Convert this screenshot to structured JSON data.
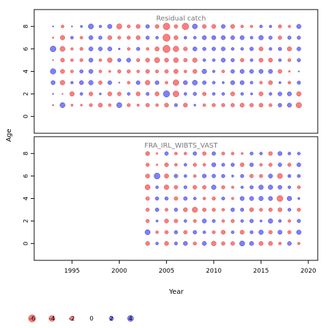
{
  "chart_data": {
    "type": "scatter",
    "subtype": "bubble",
    "xlabel": "Year",
    "ylabel": "Age",
    "xlim": [
      1991,
      2021
    ],
    "x_ticks": [
      1995,
      2000,
      2005,
      2010,
      2015,
      2020
    ],
    "y_ticks": [
      0,
      2,
      4,
      6,
      8
    ],
    "grid": false,
    "colors": {
      "positive": "#6a6af5",
      "negative": "#f56a6a",
      "panel_title": "#777777"
    },
    "panels": [
      {
        "title": "Residual catch",
        "ylim": [
          -1.5,
          9.5
        ],
        "years": [
          1993,
          1994,
          1995,
          1996,
          1997,
          1998,
          1999,
          2000,
          2001,
          2002,
          2003,
          2004,
          2005,
          2006,
          2007,
          2008,
          2009,
          2010,
          2011,
          2012,
          2013,
          2014,
          2015,
          2016,
          2017,
          2018,
          2019
        ],
        "ages": [
          1,
          2,
          3,
          4,
          5,
          6,
          7,
          8
        ],
        "residuals_by_age": {
          "1": [
            -0.3,
            3.0,
            -0.6,
            -0.5,
            -1.2,
            -2.0,
            -1.0,
            3.0,
            -1.3,
            -0.7,
            -1.6,
            -1.0,
            -2.0,
            1.2,
            -2.0,
            0.5,
            -1.0,
            -1.4,
            -1.4,
            -1.6,
            -2.0,
            -1.6,
            -1.8,
            -1.2,
            1.6,
            2.0,
            -3.5
          ],
          "2": [
            0.2,
            -0.2,
            -2.4,
            1.0,
            -1.8,
            0.5,
            -2.0,
            -1.7,
            1.0,
            -2.0,
            1.2,
            -2.0,
            4.6,
            -4.0,
            1.0,
            1.4,
            -1.6,
            1.0,
            1.0,
            -2.0,
            1.0,
            0.6,
            -2.0,
            1.0,
            1.8,
            2.0,
            -2.4
          ],
          "3": [
            2.0,
            -2.6,
            0.8,
            2.0,
            2.4,
            -1.6,
            1.8,
            0.2,
            -1.0,
            1.8,
            -2.6,
            1.8,
            -1.0,
            -3.8,
            2.0,
            2.8,
            1.6,
            1.0,
            0.6,
            2.0,
            2.0,
            1.0,
            -1.0,
            -2.0,
            0.6,
            -1.0,
            1.4
          ],
          "4": [
            3.4,
            -2.0,
            -1.0,
            1.4,
            2.0,
            -1.0,
            -0.6,
            -1.4,
            -1.4,
            -1.0,
            -1.8,
            -1.2,
            -1.6,
            -2.2,
            -1.0,
            -2.0,
            2.4,
            0.8,
            -1.0,
            1.6,
            2.0,
            1.8,
            2.0,
            2.0,
            -1.8,
            -0.4,
            0.2
          ],
          "5": [
            -0.2,
            -1.8,
            -1.0,
            -1.2,
            2.0,
            -1.0,
            -2.6,
            1.4,
            2.0,
            -1.4,
            -2.0,
            -3.2,
            -2.0,
            -2.8,
            -1.6,
            -2.4,
            1.0,
            1.0,
            2.0,
            1.4,
            -1.6,
            1.0,
            -2.0,
            -2.0,
            1.0,
            -1.2,
            1.4
          ],
          "6": [
            3.8,
            -3.0,
            -0.8,
            -1.2,
            2.0,
            1.8,
            2.0,
            0.4,
            -1.0,
            1.4,
            -1.0,
            -2.2,
            -6.0,
            -3.6,
            -1.8,
            2.0,
            1.4,
            1.6,
            1.8,
            1.0,
            1.0,
            1.6,
            -2.0,
            1.0,
            1.4,
            -2.2,
            1.8
          ],
          "7": [
            -0.3,
            -2.4,
            1.0,
            -1.0,
            2.0,
            1.4,
            -2.0,
            -1.2,
            -1.4,
            -2.0,
            1.4,
            1.0,
            -6.0,
            -2.0,
            1.0,
            1.0,
            2.0,
            2.0,
            2.0,
            1.8,
            2.0,
            1.0,
            2.4,
            1.4,
            -1.6,
            1.4,
            1.4
          ],
          "8": [
            0.2,
            -1.0,
            0.2,
            0.6,
            3.0,
            0.8,
            2.2,
            -3.2,
            -1.2,
            -2.0,
            1.6,
            -1.8,
            -5.2,
            -1.6,
            -5.0,
            2.8,
            -1.8,
            -2.0,
            1.8,
            -2.0,
            -1.0,
            -0.8,
            1.0,
            0.8,
            -1.4,
            -0.8,
            2.2
          ]
        }
      },
      {
        "title": "FRA_IRL_WIBTS_VAST",
        "ylim": [
          -1.5,
          9.5
        ],
        "years": [
          2003,
          2004,
          2005,
          2006,
          2007,
          2008,
          2009,
          2010,
          2011,
          2012,
          2013,
          2014,
          2015,
          2016,
          2017,
          2018,
          2019
        ],
        "ages": [
          0,
          1,
          2,
          3,
          4,
          5,
          6,
          7,
          8
        ],
        "residuals_by_age": {
          "0": [
            -2.0,
            1.0,
            -2.0,
            1.2,
            2.0,
            -1.4,
            2.0,
            -2.6,
            -1.6,
            -1.8,
            3.0,
            2.0,
            -2.0,
            -2.0,
            -1.0,
            1.8,
            -0.8
          ],
          "1": [
            3.0,
            -1.0,
            -1.4,
            1.4,
            -1.6,
            1.6,
            1.0,
            -1.2,
            -2.0,
            1.0,
            -2.0,
            1.2,
            2.4,
            -1.6,
            2.0,
            -1.4,
            2.4
          ],
          "2": [
            -1.4,
            0.6,
            -2.0,
            -1.6,
            1.0,
            -1.2,
            2.0,
            1.2,
            -1.0,
            -1.4,
            1.0,
            1.6,
            0.6,
            2.4,
            1.0,
            -1.0,
            1.4
          ],
          "3": [
            -1.4,
            1.6,
            -1.2,
            1.4,
            -2.0,
            -3.2,
            -1.6,
            -1.4,
            -1.0,
            1.6,
            1.4,
            -2.0,
            -1.2,
            -1.6,
            -2.0,
            1.2,
            -1.4
          ],
          "4": [
            -1.6,
            1.4,
            1.4,
            -1.6,
            1.6,
            1.0,
            -1.0,
            -1.4,
            1.2,
            -0.8,
            2.0,
            2.0,
            2.2,
            2.0,
            -4.0,
            2.4,
            0.6
          ],
          "5": [
            -3.0,
            1.0,
            -2.6,
            -1.6,
            1.2,
            -1.8,
            -1.6,
            2.4,
            -1.4,
            -0.8,
            0.8,
            1.4,
            2.4,
            2.4,
            1.8,
            1.0,
            -1.2
          ],
          "6": [
            -2.0,
            4.0,
            -2.2,
            1.6,
            1.0,
            -1.0,
            1.8,
            1.6,
            1.4,
            0.6,
            1.4,
            -1.6,
            -1.4,
            2.0,
            -3.0,
            1.2,
            1.2
          ],
          "7": [
            -1.4,
            -0.4,
            -1.8,
            -1.0,
            1.0,
            -1.4,
            -1.0,
            2.0,
            1.2,
            1.4,
            -1.8,
            1.6,
            -1.0,
            -1.4,
            1.6,
            -1.4,
            1.8
          ],
          "8": [
            -2.0,
            -0.4,
            1.6,
            -1.0,
            -1.0,
            1.6,
            -1.6,
            1.6,
            -1.2,
            -1.0,
            -0.6,
            1.2,
            1.0,
            -1.8,
            2.0,
            1.0,
            1.0
          ]
        }
      }
    ],
    "legend": {
      "placement": "bottom-left",
      "entries": [
        {
          "label": "-6",
          "value": -6
        },
        {
          "label": "-4",
          "value": -4
        },
        {
          "label": "-2",
          "value": -2
        },
        {
          "label": "0",
          "value": 0
        },
        {
          "label": "2",
          "value": 2
        },
        {
          "label": "4",
          "value": 4
        }
      ]
    }
  }
}
